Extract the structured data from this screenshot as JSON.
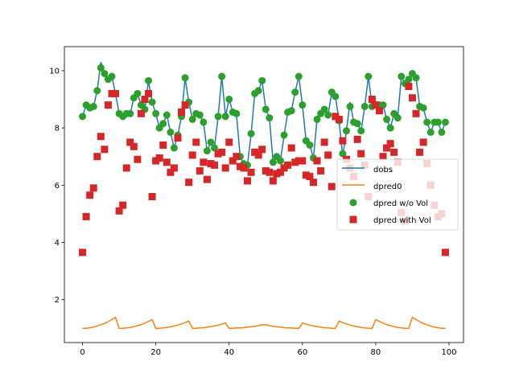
{
  "chart_data": {
    "type": "line",
    "title": "",
    "xlabel": "",
    "ylabel": "",
    "xlim": [
      -4.95,
      103.95
    ],
    "ylim": [
      0.5,
      10.84
    ],
    "xticks": [
      "0",
      "20",
      "40",
      "60",
      "80",
      "100"
    ],
    "yticks": [
      "2",
      "4",
      "6",
      "8",
      "10"
    ],
    "grid": false,
    "legend_placement": "center-right",
    "x": [
      0,
      1,
      2,
      3,
      4,
      5,
      6,
      7,
      8,
      9,
      10,
      11,
      12,
      13,
      14,
      15,
      16,
      17,
      18,
      19,
      20,
      21,
      22,
      23,
      24,
      25,
      26,
      27,
      28,
      29,
      30,
      31,
      32,
      33,
      34,
      35,
      36,
      37,
      38,
      39,
      40,
      41,
      42,
      43,
      44,
      45,
      46,
      47,
      48,
      49,
      50,
      51,
      52,
      53,
      54,
      55,
      56,
      57,
      58,
      59,
      60,
      61,
      62,
      63,
      64,
      65,
      66,
      67,
      68,
      69,
      70,
      71,
      72,
      73,
      74,
      75,
      76,
      77,
      78,
      79,
      80,
      81,
      82,
      83,
      84,
      85,
      86,
      87,
      88,
      89,
      90,
      91,
      92,
      93,
      94,
      95,
      96,
      97,
      98,
      99
    ],
    "series": [
      {
        "name": "dobs",
        "kind": "line",
        "color": "#1f77b4",
        "values": [
          8.4,
          8.8,
          8.7,
          8.75,
          9.3,
          10.3,
          9.9,
          9.7,
          9.8,
          9.2,
          8.5,
          8.4,
          8.5,
          8.5,
          9.05,
          9.2,
          8.8,
          8.65,
          9.65,
          8.9,
          8.5,
          8.0,
          8.15,
          8.45,
          7.85,
          7.3,
          7.75,
          8.4,
          9.75,
          8.9,
          8.3,
          8.5,
          8.45,
          8.2,
          7.2,
          7.5,
          7.3,
          8.4,
          9.8,
          8.4,
          9.0,
          8.55,
          8.5,
          7.0,
          6.75,
          6.7,
          7.8,
          9.2,
          9.3,
          9.65,
          8.65,
          8.35,
          6.8,
          7.0,
          6.85,
          7.75,
          8.55,
          8.6,
          9.25,
          9.8,
          8.8,
          7.55,
          7.4,
          6.95,
          8.3,
          8.5,
          8.65,
          8.45,
          9.25,
          9.1,
          8.25,
          7.0,
          7.9,
          8.9,
          8.2,
          8.15,
          7.9,
          8.75,
          9.8,
          8.75,
          8.8,
          8.8,
          8.8,
          8.3,
          8.0,
          8.5,
          8.35,
          9.8,
          9.55,
          9.7,
          9.9,
          9.75,
          8.75,
          8.7,
          8.2,
          7.85,
          8.2,
          8.2,
          7.85,
          8.2
        ]
      },
      {
        "name": "dpred0",
        "kind": "line",
        "color": "#ff7f0e",
        "values": [
          1.0,
          1.0,
          1.02,
          1.04,
          1.08,
          1.12,
          1.17,
          1.23,
          1.3,
          1.38,
          1.0,
          1.0,
          1.01,
          1.03,
          1.06,
          1.09,
          1.13,
          1.18,
          1.24,
          1.3,
          1.0,
          1.0,
          1.01,
          1.03,
          1.05,
          1.08,
          1.11,
          1.15,
          1.2,
          1.25,
          1.0,
          1.0,
          1.01,
          1.02,
          1.04,
          1.06,
          1.08,
          1.11,
          1.14,
          1.18,
          1.0,
          1.0,
          1.01,
          1.01,
          1.02,
          1.04,
          1.05,
          1.07,
          1.09,
          1.12,
          1.12,
          1.09,
          1.07,
          1.05,
          1.04,
          1.02,
          1.01,
          1.01,
          1.0,
          1.0,
          1.18,
          1.14,
          1.11,
          1.08,
          1.06,
          1.04,
          1.02,
          1.01,
          1.0,
          1.0,
          1.25,
          1.2,
          1.15,
          1.11,
          1.08,
          1.05,
          1.03,
          1.01,
          1.0,
          1.0,
          1.3,
          1.24,
          1.18,
          1.13,
          1.09,
          1.06,
          1.03,
          1.01,
          1.0,
          1.0,
          1.38,
          1.3,
          1.23,
          1.17,
          1.12,
          1.08,
          1.04,
          1.02,
          1.0,
          1.0
        ]
      },
      {
        "name": "dpred w/o Vol",
        "kind": "circle",
        "color": "#2ca02c",
        "values": [
          8.4,
          8.8,
          8.7,
          8.75,
          9.3,
          10.1,
          9.9,
          9.7,
          9.8,
          9.2,
          8.5,
          8.4,
          8.5,
          8.5,
          9.05,
          9.2,
          8.8,
          8.65,
          9.65,
          8.9,
          8.5,
          8.0,
          8.15,
          8.45,
          7.85,
          7.3,
          7.75,
          8.4,
          9.75,
          8.9,
          8.3,
          8.5,
          8.45,
          8.2,
          7.2,
          7.5,
          7.3,
          8.4,
          9.8,
          8.4,
          9.0,
          8.55,
          8.5,
          7.0,
          6.75,
          6.7,
          7.8,
          9.2,
          9.3,
          9.65,
          8.65,
          8.35,
          6.8,
          7.0,
          6.85,
          7.75,
          8.55,
          8.6,
          9.25,
          9.8,
          8.8,
          7.55,
          7.4,
          6.95,
          8.3,
          8.5,
          8.65,
          8.45,
          9.25,
          9.1,
          8.25,
          7.1,
          7.9,
          8.75,
          8.2,
          8.15,
          7.9,
          8.75,
          9.8,
          8.75,
          8.8,
          8.8,
          8.8,
          8.3,
          8.0,
          8.5,
          8.35,
          9.8,
          9.55,
          9.7,
          9.9,
          9.75,
          8.75,
          8.7,
          8.2,
          7.85,
          8.2,
          8.2,
          7.85,
          8.2
        ]
      },
      {
        "name": "dpred with Vol",
        "kind": "square",
        "color": "#d62728",
        "values": [
          3.65,
          4.9,
          5.65,
          5.9,
          7.0,
          7.7,
          7.25,
          8.8,
          9.2,
          9.2,
          5.1,
          5.3,
          6.6,
          7.5,
          7.35,
          6.9,
          8.5,
          9.0,
          9.2,
          5.6,
          6.85,
          6.95,
          7.4,
          6.8,
          6.45,
          6.6,
          7.65,
          8.55,
          8.8,
          6.1,
          7.05,
          7.5,
          6.5,
          6.8,
          6.2,
          6.75,
          6.7,
          7.1,
          7.15,
          6.6,
          7.5,
          6.85,
          7.0,
          6.65,
          6.6,
          6.15,
          6.45,
          7.15,
          7.05,
          7.25,
          6.5,
          6.45,
          6.15,
          6.4,
          6.45,
          6.6,
          6.7,
          7.3,
          6.8,
          6.85,
          6.85,
          6.35,
          6.3,
          6.1,
          6.85,
          6.5,
          7.5,
          7.05,
          5.95,
          8.4,
          8.3,
          7.55,
          6.9,
          6.6,
          6.3,
          7.6,
          7.1,
          6.7,
          5.6,
          9.0,
          8.8,
          8.6,
          7.0,
          7.3,
          7.45,
          7.15,
          6.8,
          5.05,
          4.75,
          9.45,
          9.05,
          8.5,
          7.15,
          7.5,
          6.75,
          6.0,
          5.3,
          4.9,
          5.0,
          3.65
        ]
      }
    ]
  }
}
